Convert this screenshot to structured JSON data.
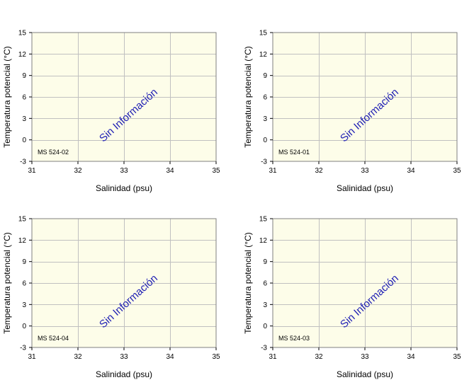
{
  "chart_data": [
    {
      "type": "scatter",
      "station_label": "MS 524-02",
      "annotation": "Sin Información",
      "xlabel": "Salinidad (psu)",
      "ylabel": "Temperatura potencial (°C)",
      "xlim": [
        31,
        35
      ],
      "ylim": [
        -3,
        15
      ],
      "xticks": [
        "31",
        "32",
        "33",
        "34",
        "35"
      ],
      "yticks": [
        "-3",
        "0",
        "3",
        "6",
        "9",
        "12",
        "15"
      ],
      "grid": true,
      "series": []
    },
    {
      "type": "scatter",
      "station_label": "MS 524-01",
      "annotation": "Sin Información",
      "xlabel": "Salinidad (psu)",
      "ylabel": "Temperatura potencial (°C)",
      "xlim": [
        31,
        35
      ],
      "ylim": [
        -3,
        15
      ],
      "xticks": [
        "31",
        "32",
        "33",
        "34",
        "35"
      ],
      "yticks": [
        "-3",
        "0",
        "3",
        "6",
        "9",
        "12",
        "15"
      ],
      "grid": true,
      "series": []
    },
    {
      "type": "scatter",
      "station_label": "MS 524-04",
      "annotation": "Sin Información",
      "xlabel": "Salinidad (psu)",
      "ylabel": "Temperatura potencial (°C)",
      "xlim": [
        31,
        35
      ],
      "ylim": [
        -3,
        15
      ],
      "xticks": [
        "31",
        "32",
        "33",
        "34",
        "35"
      ],
      "yticks": [
        "-3",
        "0",
        "3",
        "6",
        "9",
        "12",
        "15"
      ],
      "grid": true,
      "series": []
    },
    {
      "type": "scatter",
      "station_label": "MS 524-03",
      "annotation": "Sin Información",
      "xlabel": "Salinidad (psu)",
      "ylabel": "Temperatura potencial (°C)",
      "xlim": [
        31,
        35
      ],
      "ylim": [
        -3,
        15
      ],
      "xticks": [
        "31",
        "32",
        "33",
        "34",
        "35"
      ],
      "yticks": [
        "-3",
        "0",
        "3",
        "6",
        "9",
        "12",
        "15"
      ],
      "grid": true,
      "series": []
    }
  ]
}
